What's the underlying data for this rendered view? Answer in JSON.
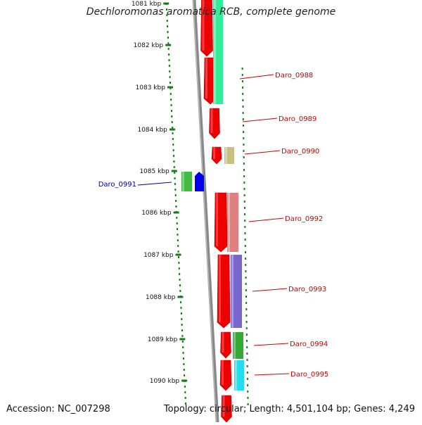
{
  "title": "Dechloromonas aromatica RCB, complete genome",
  "accession_text": "Accession: NC_007298",
  "topology_text": "Topology: circular; Length: 4,501,104 bp; Genes: 4,249",
  "ticks": [
    {
      "label": "1081 kbp"
    },
    {
      "label": "1082 kbp"
    },
    {
      "label": "1083 kbp"
    },
    {
      "label": "1084 kbp"
    },
    {
      "label": "1085 kbp"
    },
    {
      "label": "1086 kbp"
    },
    {
      "label": "1087 kbp"
    },
    {
      "label": "1088 kbp"
    },
    {
      "label": "1089 kbp"
    },
    {
      "label": "1090 kbp"
    }
  ],
  "gene_labels": [
    {
      "text": "Daro_0988",
      "color": "#cc0000"
    },
    {
      "text": "Daro_0989",
      "color": "#cc0000"
    },
    {
      "text": "Daro_0990",
      "color": "#cc0000"
    },
    {
      "text": "Daro_0991",
      "color": "#000099"
    },
    {
      "text": "Daro_0992",
      "color": "#cc0000"
    },
    {
      "text": "Daro_0993",
      "color": "#cc0000"
    },
    {
      "text": "Daro_0994",
      "color": "#cc0000"
    },
    {
      "text": "Daro_0995",
      "color": "#cc0000"
    }
  ],
  "colors": {
    "cds": "#ee0000",
    "backbone": "#888888",
    "ticks": "#1a7a1a",
    "Daro_0988": "#33ee99",
    "Daro_0989": "#ee0000",
    "Daro_0990": "#c8c080",
    "Daro_0991a": "#44bb44",
    "Daro_0991b": "#0000ee",
    "Daro_0992": "#e08080",
    "Daro_0993": "#7766cc",
    "Daro_0994": "#33aa33",
    "Daro_0995": "#22ddee"
  }
}
